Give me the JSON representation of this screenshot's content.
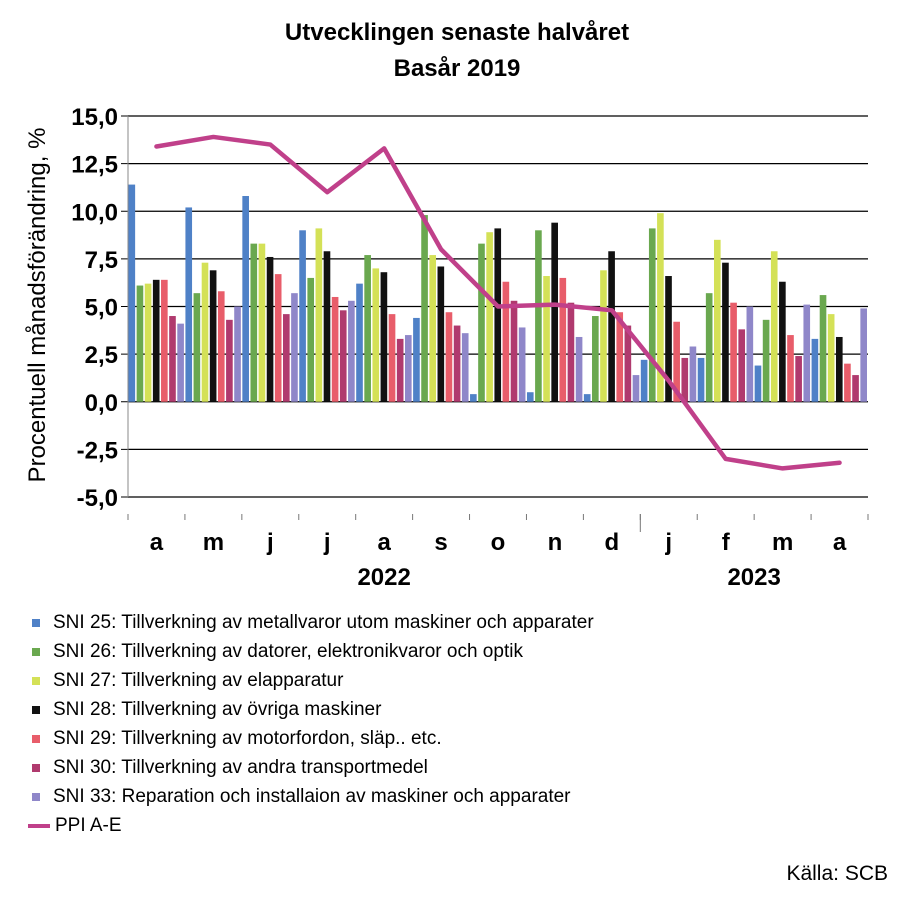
{
  "title": "Utvecklingen senaste halvåret",
  "subtitle": "Basår 2019",
  "source": "Källa: SCB",
  "colors": {
    "SNI 25": "#4f81c7",
    "SNI 26": "#6aa84f",
    "SNI 27": "#d4e157",
    "SNI 28": "#111111",
    "SNI 29": "#e85d6a",
    "SNI 30": "#b03a6e",
    "SNI 33": "#8f87c9",
    "PPI A-E": "#c0408a"
  },
  "chart_data": {
    "type": "bar",
    "title": "Utvecklingen senaste halvåret",
    "subtitle": "Basår 2019",
    "ylabel": "Procentuell månadsförändring, %",
    "xlabel": "",
    "categories": [
      "a",
      "m",
      "j",
      "j",
      "a",
      "s",
      "o",
      "n",
      "d",
      "j",
      "f",
      "m",
      "a"
    ],
    "year_labels": [
      {
        "label": "2022",
        "category_index": 4
      },
      {
        "label": "2023",
        "category_index": 10.5
      }
    ],
    "ylim": [
      -5.0,
      15.0
    ],
    "yticks": [
      "15,0",
      "12,5",
      "10,0",
      "7,5",
      "5,0",
      "2,5",
      "0,0",
      "-2,5",
      "-5,0"
    ],
    "ytick_values": [
      15.0,
      12.5,
      10.0,
      7.5,
      5.0,
      2.5,
      0.0,
      -2.5,
      -5.0
    ],
    "grid": true,
    "legend_position": "bottom",
    "series": [
      {
        "name": "SNI 25: Tillverkning av metallvaror utom maskiner och apparater",
        "key": "SNI 25",
        "type": "bar",
        "values": [
          11.4,
          10.2,
          10.8,
          9.0,
          6.2,
          4.4,
          0.4,
          0.5,
          0.4,
          2.2,
          2.3,
          1.9,
          3.3
        ]
      },
      {
        "name": "SNI 26: Tillverkning av datorer, elektronikvaror och optik",
        "key": "SNI 26",
        "type": "bar",
        "values": [
          6.1,
          5.7,
          8.3,
          6.5,
          7.7,
          9.8,
          8.3,
          9.0,
          4.5,
          9.1,
          5.7,
          4.3,
          5.6
        ]
      },
      {
        "name": "SNI 27: Tillverkning av elapparatur",
        "key": "SNI 27",
        "type": "bar",
        "values": [
          6.2,
          7.3,
          8.3,
          9.1,
          7.0,
          7.7,
          8.9,
          6.6,
          6.9,
          9.9,
          8.5,
          7.9,
          4.6
        ]
      },
      {
        "name": "SNI 28: Tillverkning av övriga maskiner",
        "key": "SNI 28",
        "type": "bar",
        "values": [
          6.4,
          6.9,
          7.6,
          7.9,
          6.8,
          7.1,
          9.1,
          9.4,
          7.9,
          6.6,
          7.3,
          6.3,
          3.4
        ]
      },
      {
        "name": "SNI 29: Tillverkning av motorfordon, släp.. etc.",
        "key": "SNI 29",
        "type": "bar",
        "values": [
          6.4,
          5.8,
          6.7,
          5.5,
          4.6,
          4.7,
          6.3,
          6.5,
          4.7,
          4.2,
          5.2,
          3.5,
          2.0
        ]
      },
      {
        "name": "SNI 30: Tillverkning av andra transportmedel",
        "key": "SNI 30",
        "type": "bar",
        "values": [
          4.5,
          4.3,
          4.6,
          4.8,
          3.3,
          4.0,
          5.3,
          5.2,
          4.0,
          2.3,
          3.8,
          2.4,
          1.4
        ]
      },
      {
        "name": "SNI 33: Reparation och installaion av maskiner och apparater",
        "key": "SNI 33",
        "type": "bar",
        "values": [
          4.1,
          5.0,
          5.7,
          5.3,
          3.5,
          3.6,
          3.9,
          3.4,
          1.4,
          2.9,
          5.0,
          5.1,
          4.9
        ]
      },
      {
        "name": "PPI A-E",
        "key": "PPI A-E",
        "type": "line",
        "values": [
          13.4,
          13.9,
          13.5,
          11.0,
          13.3,
          8.0,
          5.0,
          5.1,
          4.8,
          1.1,
          -3.0,
          -3.5,
          -3.2
        ]
      }
    ]
  }
}
